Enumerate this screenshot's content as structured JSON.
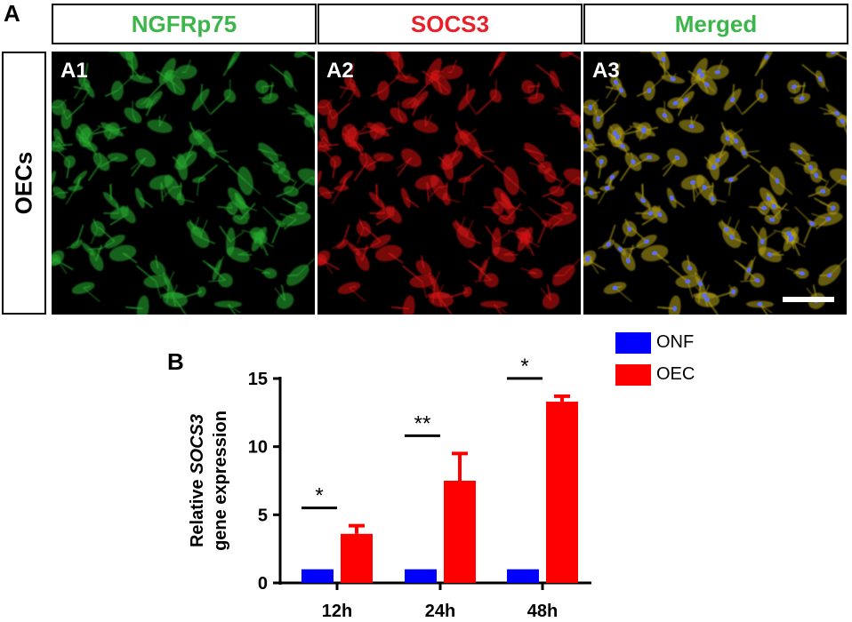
{
  "panel_a_label": "A",
  "panel_b_label": "B",
  "columns": [
    {
      "label": "NGFRp75",
      "color": "#3cb54a"
    },
    {
      "label": "SOCS3",
      "color": "#e8202a"
    },
    {
      "label": "Merged",
      "color": "#3cb54a"
    }
  ],
  "row_label": "OECs",
  "subpanels": [
    "A1",
    "A2",
    "A3"
  ],
  "chart_data": {
    "type": "bar",
    "categories": [
      "12h",
      "24h",
      "48h"
    ],
    "series": [
      {
        "name": "ONF",
        "values": [
          1.0,
          1.0,
          1.0
        ],
        "errors": [
          0,
          0,
          0
        ],
        "color": "#0000ff"
      },
      {
        "name": "OEC",
        "values": [
          3.6,
          7.5,
          13.3
        ],
        "errors": [
          0.6,
          2.0,
          0.4
        ],
        "color": "#ff0000"
      }
    ],
    "ylabel_line1_prefix": "Relative ",
    "ylabel_line1_gene": "SOCS3",
    "ylabel_line2": "gene expression",
    "ylim": [
      0,
      15
    ],
    "yticks": [
      0,
      5,
      10,
      15
    ],
    "significance": [
      "*",
      "**",
      "*"
    ],
    "legend_position": "top-right"
  }
}
